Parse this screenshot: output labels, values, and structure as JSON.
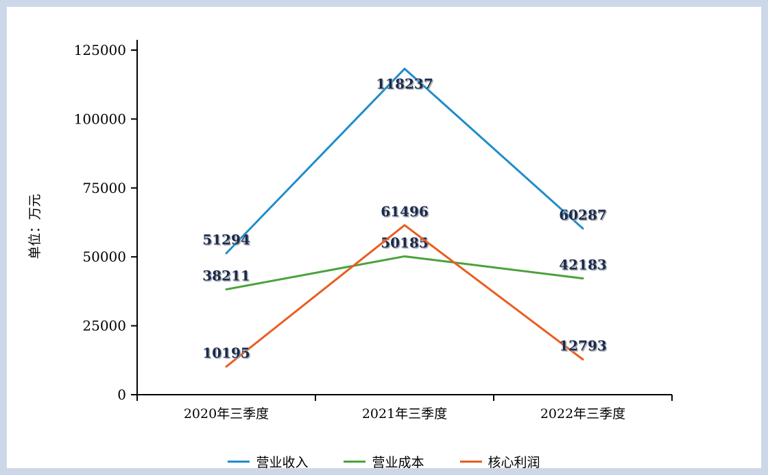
{
  "chart_data": {
    "type": "line",
    "title": "",
    "categories": [
      "2020年三季度",
      "2021年三季度",
      "2022年三季度"
    ],
    "series": [
      {
        "name": "营业收入",
        "color": "#1f8dca",
        "values": [
          51294,
          118237,
          60287
        ]
      },
      {
        "name": "营业成本",
        "color": "#48a339",
        "values": [
          38211,
          50185,
          42183
        ]
      },
      {
        "name": "核心利润",
        "color": "#e95d20",
        "values": [
          10195,
          61496,
          12793
        ]
      }
    ],
    "xlabel": "",
    "ylabel": "单位：万元",
    "ylim": [
      0,
      125000
    ],
    "yticks": [
      0,
      25000,
      50000,
      75000,
      100000,
      125000
    ],
    "grid": false,
    "legend_position": "bottom",
    "data_labels_visible": true,
    "colors": {
      "axis": "#000000",
      "data_label_text": "#1b2a4c",
      "plot_background": "#ffffff",
      "frame_background": "#ccd8e9"
    }
  }
}
